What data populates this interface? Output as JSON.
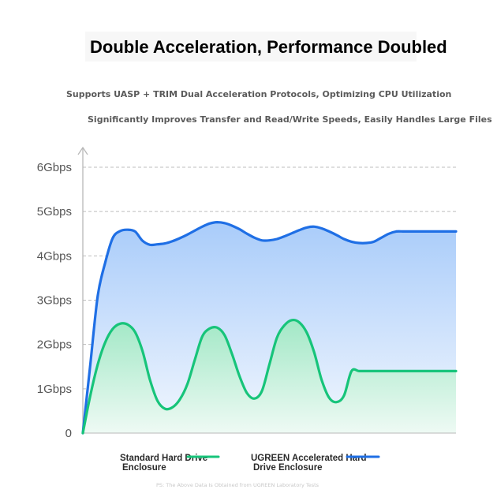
{
  "chart_data": {
    "type": "area",
    "title": "Double Acceleration, Performance Doubled",
    "subtitles": [
      "Supports UASP + TRIM Dual Acceleration Protocols, Optimizing CPU Utilization",
      "Significantly Improves Transfer and Read/Write Speeds, Easily Handles Large Files"
    ],
    "y_ticks": [
      "0",
      "1Gbps",
      "2Gbps",
      "3Gbps",
      "4Gbps",
      "5Gbps",
      "6Gbps"
    ],
    "ylim": [
      0,
      6
    ],
    "grid": true,
    "legend_position": "bottom",
    "series": [
      {
        "name_lines": [
          "UGREEN Accelerated Hard",
          "Drive Enclosure"
        ],
        "color": "#1f6fe5",
        "fill_top": "#a9ccfa",
        "fill_bottom": "#f2f7fe",
        "x": [
          0,
          2,
          4,
          6,
          8,
          10,
          12,
          14,
          16,
          18,
          20,
          22,
          24,
          26,
          28,
          30,
          32,
          34,
          36,
          38,
          40,
          42,
          44,
          46,
          48,
          50,
          52,
          54,
          56,
          58,
          60,
          62,
          64,
          66,
          68,
          70,
          72,
          74,
          76,
          78,
          80,
          82,
          84,
          86,
          88,
          90,
          92,
          94,
          96,
          98,
          100
        ],
        "values": [
          0,
          1.55,
          3.1,
          3.85,
          4.4,
          4.56,
          4.59,
          4.55,
          4.34,
          4.25,
          4.26,
          4.28,
          4.33,
          4.4,
          4.48,
          4.57,
          4.66,
          4.73,
          4.76,
          4.74,
          4.68,
          4.6,
          4.5,
          4.41,
          4.35,
          4.35,
          4.38,
          4.44,
          4.51,
          4.58,
          4.64,
          4.66,
          4.62,
          4.55,
          4.47,
          4.38,
          4.32,
          4.29,
          4.29,
          4.32,
          4.41,
          4.5,
          4.55,
          4.55,
          4.55,
          4.55,
          4.55,
          4.55,
          4.55,
          4.55,
          4.55
        ]
      },
      {
        "name_lines": [
          "Standard Hard Drive",
          "Enclosure"
        ],
        "color": "#17c47a",
        "fill_top": "#a2e8c6",
        "fill_bottom": "#eefaf4",
        "x": [
          0,
          2,
          4,
          6,
          8,
          10,
          12,
          14,
          16,
          18,
          20,
          22,
          24,
          26,
          28,
          30,
          32,
          34,
          36,
          38,
          40,
          42,
          44,
          46,
          48,
          50,
          52,
          54,
          56,
          58,
          60,
          62,
          64,
          66,
          68,
          70,
          72,
          74,
          76,
          78,
          80,
          82,
          84,
          86,
          88,
          90,
          92,
          94,
          96,
          98,
          100
        ],
        "values": [
          0,
          0.85,
          1.55,
          2.05,
          2.35,
          2.47,
          2.45,
          2.28,
          1.85,
          1.2,
          0.73,
          0.55,
          0.58,
          0.76,
          1.1,
          1.65,
          2.18,
          2.36,
          2.38,
          2.21,
          1.78,
          1.28,
          0.9,
          0.78,
          0.95,
          1.55,
          2.15,
          2.43,
          2.55,
          2.5,
          2.27,
          1.82,
          1.2,
          0.8,
          0.7,
          0.85,
          1.4,
          1.4,
          1.4,
          1.4,
          1.4,
          1.4,
          1.4,
          1.4,
          1.4,
          1.4,
          1.4,
          1.4,
          1.4,
          1.4,
          1.4
        ]
      }
    ],
    "note": "PS: The Above Data Is Obtained from UGREEN Laboratory Tests"
  }
}
